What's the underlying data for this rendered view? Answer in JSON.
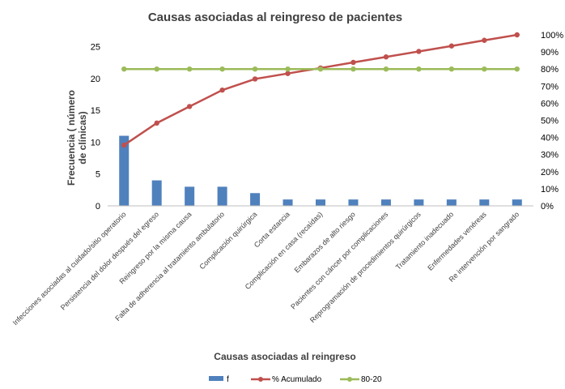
{
  "chart_data": {
    "type": "bar",
    "title": "Causas asociadas al reingreso de pacientes",
    "xlabel": "Causas asociadas al reingreso",
    "ylabel": "Frecuencia ( número de clínicas)",
    "ylim": [
      0,
      28.5
    ],
    "yticks": [
      0,
      5,
      10,
      15,
      20,
      25
    ],
    "y2lim": [
      0,
      100
    ],
    "y2ticks": [
      "0%",
      "10%",
      "20%",
      "30%",
      "40%",
      "50%",
      "60%",
      "70%",
      "80%",
      "90%",
      "100%"
    ],
    "categories": [
      "Infecciones asociadas al cuidado/sitio operatorio",
      "Persistencia del dolor después del egreso",
      "Reingreso por la misma causa",
      "Falta de adherencia al tratamiento ambulatorio",
      "Complicación quirúrgica",
      "Corta estancia",
      "Complicación en casa (recaídas)",
      "Embarazos de alto riesgo",
      "Pacientes con cáncer por complicaciones",
      "Reprogramación de procedimientos quirúrgicos",
      "Tratamiento inadecuado",
      "Enfermedades venéreas",
      "Re intervención por sangrado"
    ],
    "series": [
      {
        "name": "f",
        "type": "bar",
        "axis": "left",
        "color": "#4f81bd",
        "values": [
          11,
          4,
          3,
          3,
          2,
          1,
          1,
          1,
          1,
          1,
          1,
          1,
          1
        ]
      },
      {
        "name": "% Acumulado",
        "type": "line",
        "axis": "right",
        "color": "#c0504d",
        "values": [
          35.5,
          48.4,
          58.1,
          67.7,
          74.2,
          77.4,
          80.6,
          83.9,
          87.1,
          90.3,
          93.5,
          96.8,
          100
        ]
      },
      {
        "name": "80-20",
        "type": "line",
        "axis": "right",
        "color": "#9bbb59",
        "values": [
          80,
          80,
          80,
          80,
          80,
          80,
          80,
          80,
          80,
          80,
          80,
          80,
          80
        ]
      }
    ],
    "grid": false,
    "legend_position": "bottom"
  }
}
